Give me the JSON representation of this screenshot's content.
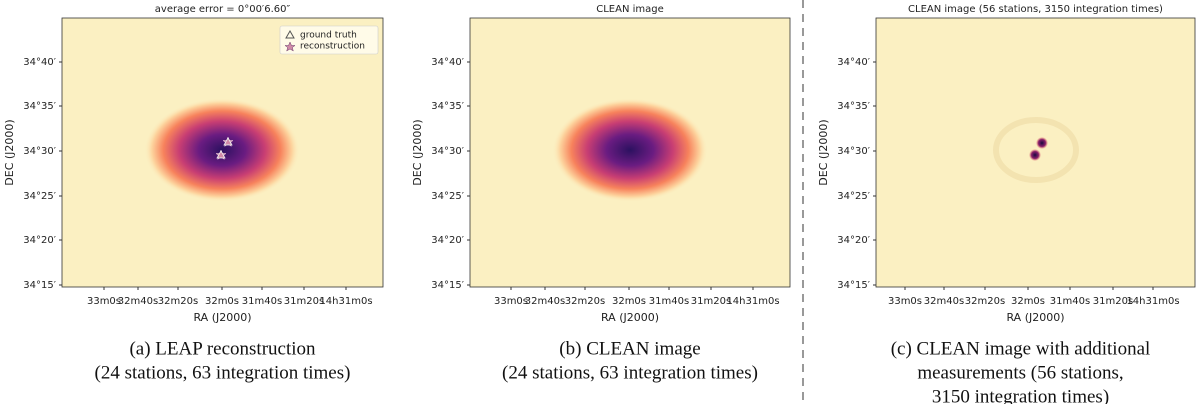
{
  "panels": [
    {
      "title": "average error = 0°00′6.60″",
      "x_label": "RA (J2000)",
      "y_label": "DEC (J2000)",
      "y_ticks": [
        "34°40′",
        "34°35′",
        "34°30′",
        "34°25′",
        "34°20′",
        "34°15′"
      ],
      "x_ticks": [
        "33m0s",
        "32m40s",
        "32m20s",
        "32m0s",
        "31m40s",
        "31m20s",
        "14h31m0s"
      ],
      "legend": [
        "ground truth",
        "reconstruction"
      ],
      "caption": [
        "(a) LEAP reconstruction",
        "(24 stations, 63 integration times)"
      ]
    },
    {
      "title": "CLEAN image",
      "x_label": "RA (J2000)",
      "y_label": "DEC (J2000)",
      "y_ticks": [
        "34°40′",
        "34°35′",
        "34°30′",
        "34°25′",
        "34°20′",
        "34°15′"
      ],
      "x_ticks": [
        "33m0s",
        "32m40s",
        "32m20s",
        "32m0s",
        "31m40s",
        "31m20s",
        "14h31m0s"
      ],
      "caption": [
        "(b) CLEAN image",
        "(24 stations, 63 integration times)"
      ]
    },
    {
      "title": "CLEAN image (56 stations, 3150 integration times)",
      "x_label": "RA (J2000)",
      "y_label": "DEC (J2000)",
      "y_ticks": [
        "34°40′",
        "34°35′",
        "34°30′",
        "34°25′",
        "34°20′",
        "34°15′"
      ],
      "x_ticks": [
        "33m0s",
        "32m40s",
        "32m20s",
        "32m0s",
        "31m40s",
        "31m20s",
        "14h31m0s"
      ],
      "caption": [
        "(c) CLEAN image with additional",
        "measurements (56 stations,",
        "3150 integration times)"
      ]
    }
  ]
}
